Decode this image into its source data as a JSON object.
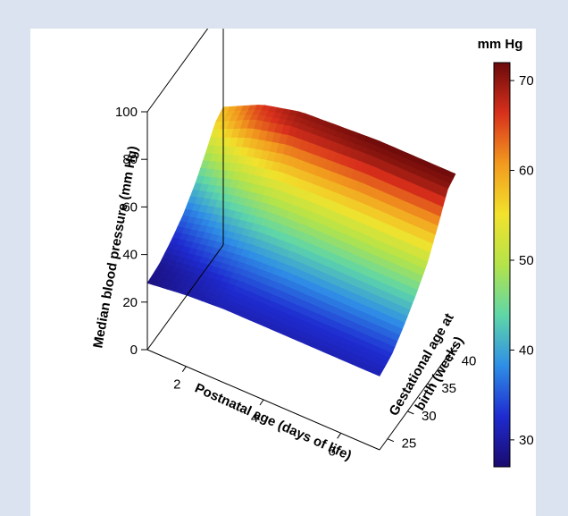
{
  "chart_data": {
    "type": "surface3d",
    "title": "",
    "xlabel": "Postnatal age (days of life)",
    "ylabel_lines": [
      "Gestational age at",
      "birth (weeks)"
    ],
    "zlabel": "Median blood pressure (mm Hg)",
    "x_ticks": [
      "2",
      "4",
      "6"
    ],
    "y_ticks": [
      "25",
      "30",
      "35",
      "40"
    ],
    "z_ticks": [
      "0",
      "20",
      "40",
      "60",
      "80",
      "100"
    ],
    "xlim": [
      1,
      7
    ],
    "ylim": [
      23,
      42
    ],
    "zlim": [
      0,
      100
    ],
    "colorbar": {
      "label": "mm Hg",
      "ticks": [
        "30",
        "40",
        "50",
        "60",
        "70"
      ],
      "range": [
        27,
        72
      ],
      "colormap": [
        "#1a0a6e",
        "#1f2bd0",
        "#2f8ee6",
        "#5fd6a8",
        "#b4e34a",
        "#f2e22c",
        "#f29a1e",
        "#d8301c",
        "#6a0a0a"
      ]
    },
    "grid": [
      {
        "gestational_age_weeks": 23,
        "bp_by_day": [
          28,
          30,
          31,
          31,
          31,
          31,
          31
        ]
      },
      {
        "gestational_age_weeks": 26,
        "bp_by_day": [
          29,
          31,
          33,
          33,
          33,
          33,
          33
        ]
      },
      {
        "gestational_age_weeks": 29,
        "bp_by_day": [
          32,
          35,
          37,
          38,
          38,
          38,
          38
        ]
      },
      {
        "gestational_age_weeks": 32,
        "bp_by_day": [
          36,
          40,
          43,
          44,
          44,
          44,
          44
        ]
      },
      {
        "gestational_age_weeks": 35,
        "bp_by_day": [
          42,
          47,
          50,
          51,
          51,
          51,
          51
        ]
      },
      {
        "gestational_age_weeks": 38,
        "bp_by_day": [
          50,
          56,
          60,
          61,
          62,
          62,
          62
        ]
      },
      {
        "gestational_age_weeks": 40,
        "bp_by_day": [
          56,
          64,
          68,
          69,
          70,
          70,
          70
        ]
      },
      {
        "gestational_age_weeks": 42,
        "bp_by_day": [
          58,
          66,
          70,
          71,
          72,
          72,
          72
        ]
      }
    ],
    "days": [
      1,
      2,
      3,
      4,
      5,
      6,
      7
    ]
  }
}
